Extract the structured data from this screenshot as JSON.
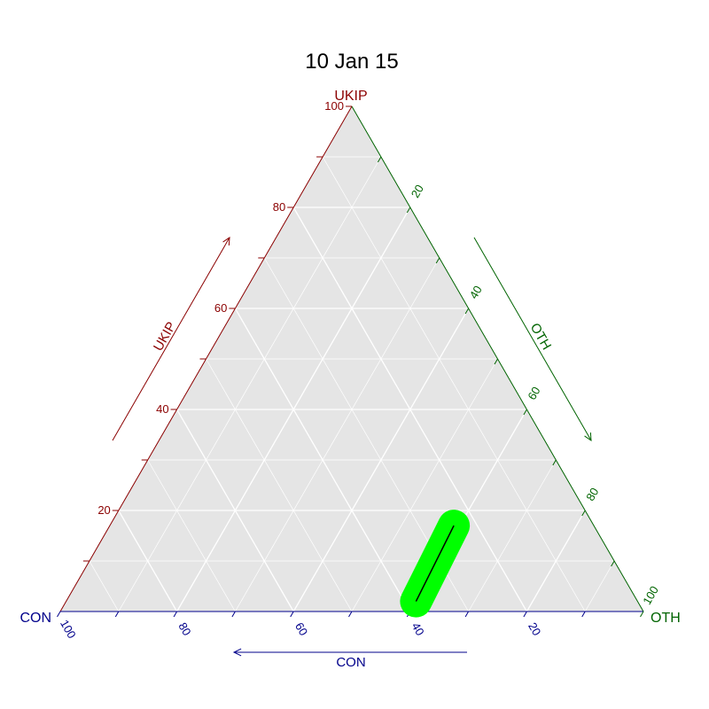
{
  "chart_data": {
    "type": "ternary",
    "title": "10 Jan 15",
    "axes": {
      "top": {
        "name": "UKIP",
        "arrow_label": "UKIP",
        "color": "#8b0000",
        "range": [
          0,
          100
        ],
        "ticks": [
          20,
          40,
          60,
          80,
          100
        ]
      },
      "right": {
        "name": "OTH",
        "arrow_label": "OTH",
        "color": "#006400",
        "range": [
          0,
          100
        ],
        "ticks": [
          20,
          40,
          60,
          80,
          100
        ]
      },
      "left": {
        "name": "CON",
        "arrow_label": "CON",
        "color": "#00008b",
        "range": [
          0,
          100
        ],
        "ticks": [
          20,
          40,
          60,
          80,
          100
        ]
      }
    },
    "grid": true,
    "background_color": "#e5e5e5",
    "series": [
      {
        "type": "line",
        "line_color": "#000000",
        "band_color": "#00ff00",
        "points": [
          {
            "CON": 38,
            "UKIP": 2,
            "OTH": 60
          },
          {
            "CON": 24,
            "UKIP": 17,
            "OTH": 59
          }
        ]
      }
    ]
  }
}
